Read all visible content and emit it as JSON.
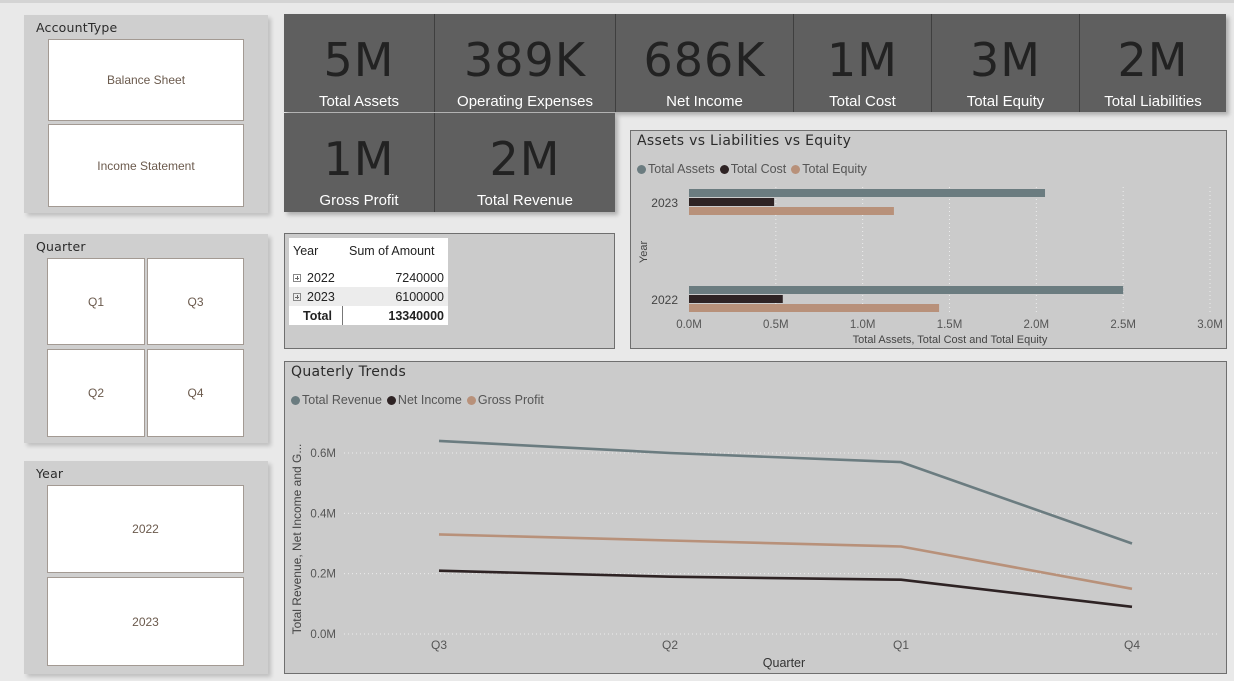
{
  "slicers": {
    "account_type": {
      "title": "AccountType",
      "items": [
        "Balance Sheet",
        "Income Statement"
      ]
    },
    "quarter": {
      "title": "Quarter",
      "items": [
        "Q1",
        "Q3",
        "Q2",
        "Q4"
      ]
    },
    "year": {
      "title": "Year",
      "items": [
        "2022",
        "2023"
      ]
    }
  },
  "kpis": {
    "row1": [
      {
        "value": "5M",
        "label": "Total Assets"
      },
      {
        "value": "389K",
        "label": "Operating Expenses"
      },
      {
        "value": "686K",
        "label": "Net Income"
      },
      {
        "value": "1M",
        "label": "Total Cost"
      },
      {
        "value": "3M",
        "label": "Total Equity"
      },
      {
        "value": "2M",
        "label": "Total Liabilities"
      }
    ],
    "row2": [
      {
        "value": "1M",
        "label": "Gross Profit"
      },
      {
        "value": "2M",
        "label": "Total Revenue"
      }
    ]
  },
  "matrix": {
    "headers": [
      "Year",
      "Sum of Amount"
    ],
    "rows": [
      {
        "year": "2022",
        "amount": "7240000"
      },
      {
        "year": "2023",
        "amount": "6100000"
      }
    ],
    "total_label": "Total",
    "total_value": "13340000"
  },
  "colors": {
    "series_1": "#6b7c80",
    "series_2": "#2e2324",
    "series_3": "#b8917a",
    "kpi_bg": "#5f5f5f",
    "panel_bg": "#cbcbcb"
  },
  "chart_data": [
    {
      "type": "bar",
      "orientation": "horizontal",
      "title": "Assets vs Liabilities vs Equity",
      "categories": [
        "2023",
        "2022"
      ],
      "series": [
        {
          "name": "Total Assets",
          "values": [
            2.05,
            2.5
          ]
        },
        {
          "name": "Total Cost",
          "values": [
            0.49,
            0.54
          ]
        },
        {
          "name": "Total Equity",
          "values": [
            1.18,
            1.44
          ]
        }
      ],
      "xlabel": "Total Assets, Total Cost and Total Equity",
      "ylabel": "Year",
      "x_ticks": [
        "0.0M",
        "0.5M",
        "1.0M",
        "1.5M",
        "2.0M",
        "2.5M",
        "3.0M"
      ],
      "xlim": [
        0,
        3.0
      ],
      "value_unit": "M",
      "legend": "top-left",
      "grid": true
    },
    {
      "type": "line",
      "title": "Quaterly Trends",
      "categories": [
        "Q3",
        "Q2",
        "Q1",
        "Q4"
      ],
      "series": [
        {
          "name": "Total Revenue",
          "values": [
            0.64,
            0.6,
            0.57,
            0.3
          ]
        },
        {
          "name": "Net Income",
          "values": [
            0.21,
            0.19,
            0.18,
            0.09
          ]
        },
        {
          "name": "Gross Profit",
          "values": [
            0.33,
            0.31,
            0.29,
            0.15
          ]
        }
      ],
      "xlabel": "Quarter",
      "ylabel": "Total Revenue, Net Income and G...",
      "y_ticks": [
        "0.0M",
        "0.2M",
        "0.4M",
        "0.6M"
      ],
      "ylim": [
        0,
        0.6
      ],
      "value_unit": "M",
      "legend": "top-left",
      "grid": true
    }
  ]
}
